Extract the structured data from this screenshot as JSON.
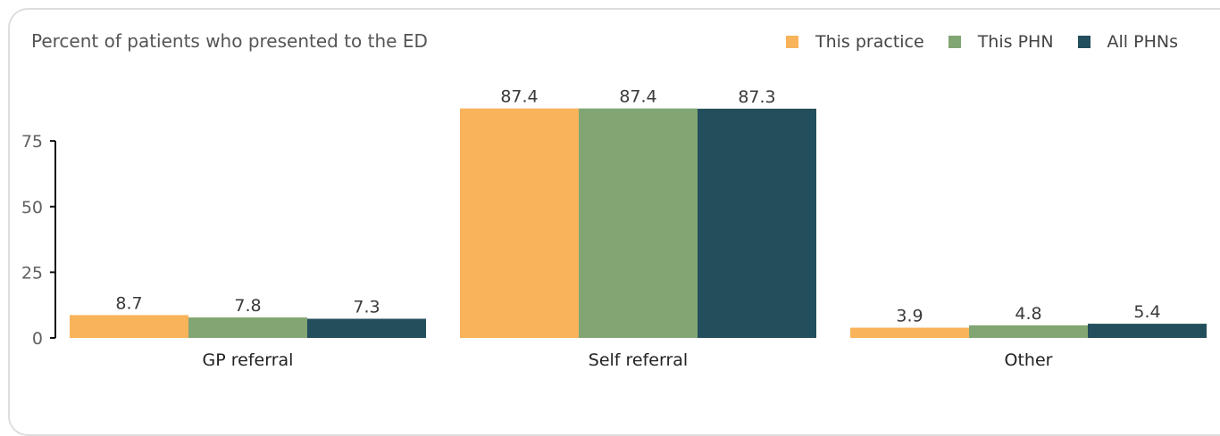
{
  "chart_data": {
    "type": "bar",
    "title": "Percent of patients who presented to the ED",
    "xlabel": "",
    "ylabel": "",
    "categories": [
      "GP referral",
      "Self referral",
      "Other"
    ],
    "series": [
      {
        "name": "This practice",
        "color": "#f9b35b",
        "values": [
          8.7,
          87.4,
          3.9
        ]
      },
      {
        "name": "This PHN",
        "color": "#82a673",
        "values": [
          7.8,
          87.4,
          4.8
        ]
      },
      {
        "name": "All PHNs",
        "color": "#234e5b",
        "values": [
          7.3,
          87.3,
          5.4
        ]
      }
    ],
    "yticks": [
      0,
      25,
      50,
      75
    ],
    "ylim": [
      0,
      87.4
    ],
    "legend_position": "top-right",
    "grid": false
  }
}
